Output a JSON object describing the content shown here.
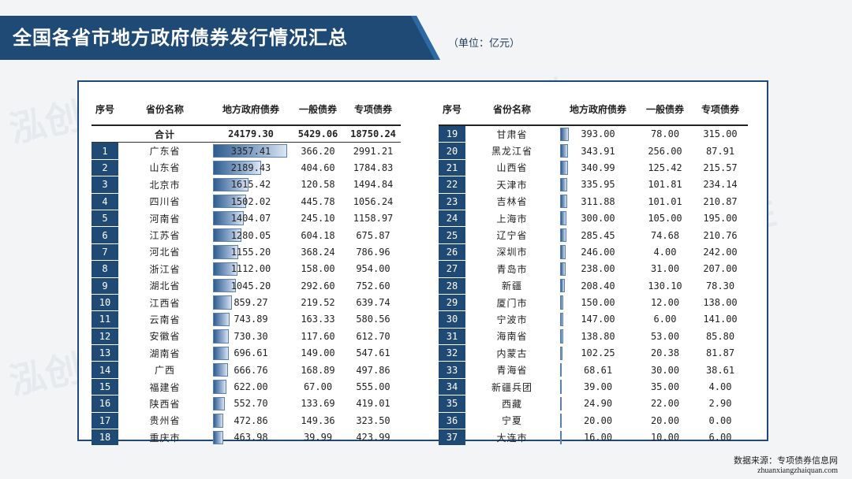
{
  "title": "全国各省市地方政府债券发行情况汇总",
  "unit": "（单位：亿元）",
  "watermark": "泓创智胜",
  "source": {
    "label": "数据来源：专项债券信息网",
    "url": "zhuanxiangzhaiquan.com"
  },
  "headers": [
    "序号",
    "省份名称",
    "地方政府债券",
    "一般债券",
    "专项债券"
  ],
  "total": {
    "label": "合计",
    "total": "24179.30",
    "general": "5429.06",
    "special": "18750.24"
  },
  "bar_max": 3357.41,
  "left_rows": [
    {
      "idx": "1",
      "name": "广东省",
      "total": "3357.41",
      "general": "366.20",
      "special": "2991.21"
    },
    {
      "idx": "2",
      "name": "山东省",
      "total": "2189.43",
      "general": "404.60",
      "special": "1784.83"
    },
    {
      "idx": "3",
      "name": "北京市",
      "total": "1615.42",
      "general": "120.58",
      "special": "1494.84"
    },
    {
      "idx": "4",
      "name": "四川省",
      "total": "1502.02",
      "general": "445.78",
      "special": "1056.24"
    },
    {
      "idx": "5",
      "name": "河南省",
      "total": "1404.07",
      "general": "245.10",
      "special": "1158.97"
    },
    {
      "idx": "6",
      "name": "江苏省",
      "total": "1280.05",
      "general": "604.18",
      "special": "675.87"
    },
    {
      "idx": "7",
      "name": "河北省",
      "total": "1155.20",
      "general": "368.24",
      "special": "786.96"
    },
    {
      "idx": "8",
      "name": "浙江省",
      "total": "1112.00",
      "general": "158.00",
      "special": "954.00"
    },
    {
      "idx": "9",
      "name": "湖北省",
      "total": "1045.20",
      "general": "292.60",
      "special": "752.60"
    },
    {
      "idx": "10",
      "name": "江西省",
      "total": "859.27",
      "general": "219.52",
      "special": "639.74"
    },
    {
      "idx": "11",
      "name": "云南省",
      "total": "743.89",
      "general": "163.33",
      "special": "580.56"
    },
    {
      "idx": "12",
      "name": "安徽省",
      "total": "730.30",
      "general": "117.60",
      "special": "612.70"
    },
    {
      "idx": "13",
      "name": "湖南省",
      "total": "696.61",
      "general": "149.00",
      "special": "547.61"
    },
    {
      "idx": "14",
      "name": "广西",
      "total": "666.76",
      "general": "168.89",
      "special": "497.86"
    },
    {
      "idx": "15",
      "name": "福建省",
      "total": "622.00",
      "general": "67.00",
      "special": "555.00"
    },
    {
      "idx": "16",
      "name": "陕西省",
      "total": "552.70",
      "general": "133.69",
      "special": "419.01"
    },
    {
      "idx": "17",
      "name": "贵州省",
      "total": "472.86",
      "general": "149.36",
      "special": "323.50"
    },
    {
      "idx": "18",
      "name": "重庆市",
      "total": "463.98",
      "general": "39.99",
      "special": "423.99"
    }
  ],
  "right_rows": [
    {
      "idx": "19",
      "name": "甘肃省",
      "total": "393.00",
      "general": "78.00",
      "special": "315.00"
    },
    {
      "idx": "20",
      "name": "黑龙江省",
      "total": "343.91",
      "general": "256.00",
      "special": "87.91"
    },
    {
      "idx": "21",
      "name": "山西省",
      "total": "340.99",
      "general": "125.42",
      "special": "215.57"
    },
    {
      "idx": "22",
      "name": "天津市",
      "total": "335.95",
      "general": "101.81",
      "special": "234.14"
    },
    {
      "idx": "23",
      "name": "吉林省",
      "total": "311.88",
      "general": "101.01",
      "special": "210.87"
    },
    {
      "idx": "24",
      "name": "上海市",
      "total": "300.00",
      "general": "105.00",
      "special": "195.00"
    },
    {
      "idx": "25",
      "name": "辽宁省",
      "total": "285.45",
      "general": "74.68",
      "special": "210.76"
    },
    {
      "idx": "26",
      "name": "深圳市",
      "total": "246.00",
      "general": "4.00",
      "special": "242.00"
    },
    {
      "idx": "27",
      "name": "青岛市",
      "total": "238.00",
      "general": "31.00",
      "special": "207.00"
    },
    {
      "idx": "28",
      "name": "新疆",
      "total": "208.40",
      "general": "130.10",
      "special": "78.30"
    },
    {
      "idx": "29",
      "name": "厦门市",
      "total": "150.00",
      "general": "12.00",
      "special": "138.00"
    },
    {
      "idx": "30",
      "name": "宁波市",
      "total": "147.00",
      "general": "6.00",
      "special": "141.00"
    },
    {
      "idx": "31",
      "name": "海南省",
      "total": "138.80",
      "general": "53.00",
      "special": "85.80"
    },
    {
      "idx": "32",
      "name": "内蒙古",
      "total": "102.25",
      "general": "20.38",
      "special": "81.87"
    },
    {
      "idx": "33",
      "name": "青海省",
      "total": "68.61",
      "general": "30.00",
      "special": "38.61"
    },
    {
      "idx": "34",
      "name": "新疆兵团",
      "total": "39.00",
      "general": "35.00",
      "special": "4.00"
    },
    {
      "idx": "35",
      "name": "西藏",
      "total": "24.90",
      "general": "22.00",
      "special": "2.90"
    },
    {
      "idx": "36",
      "name": "宁夏",
      "total": "20.00",
      "general": "20.00",
      "special": "0.00"
    },
    {
      "idx": "37",
      "name": "大连市",
      "total": "16.00",
      "general": "10.00",
      "special": "6.00"
    }
  ]
}
